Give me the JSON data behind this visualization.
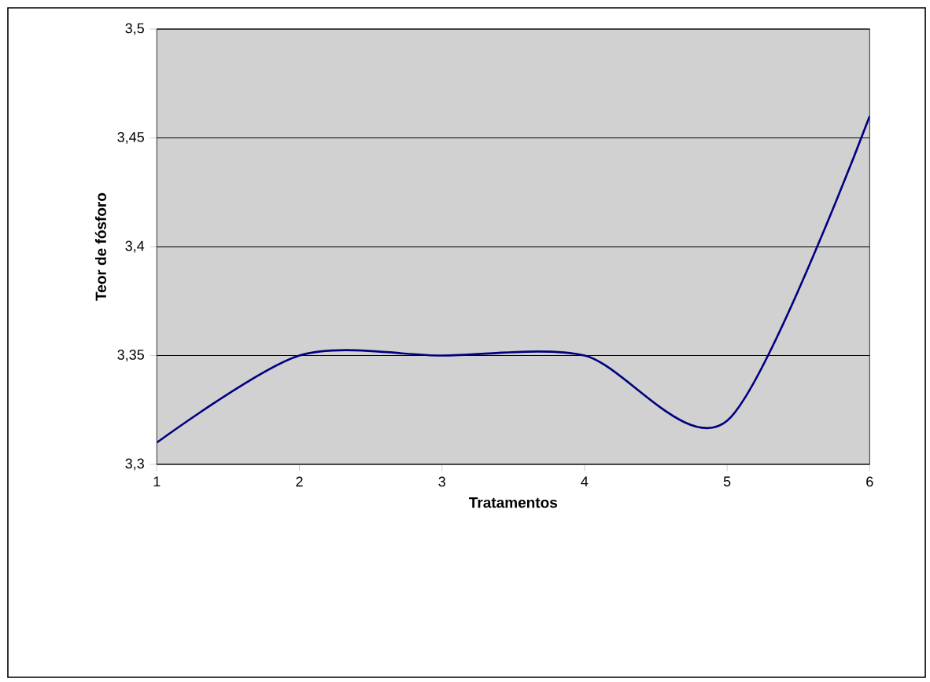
{
  "chart_data": {
    "type": "line",
    "xlabel": "Tratamentos",
    "ylabel": "Teor de fósforo",
    "x": [
      1,
      2,
      3,
      4,
      5,
      6
    ],
    "series": [
      {
        "color": "#000080",
        "values": [
          3.31,
          3.35,
          3.35,
          3.35,
          3.32,
          3.46
        ]
      }
    ],
    "xlim": [
      1,
      6
    ],
    "xticks": [
      1,
      2,
      3,
      4,
      5,
      6
    ],
    "ylim": [
      3.3,
      3.5
    ],
    "yticks": [
      {
        "value": 3.3,
        "label": "3,3"
      },
      {
        "value": 3.35,
        "label": "3,35"
      },
      {
        "value": 3.4,
        "label": "3,4"
      },
      {
        "value": 3.45,
        "label": "3,45"
      },
      {
        "value": 3.5,
        "label": "3,5"
      }
    ],
    "grid": "y",
    "marker": "none",
    "line_style": "solid"
  }
}
